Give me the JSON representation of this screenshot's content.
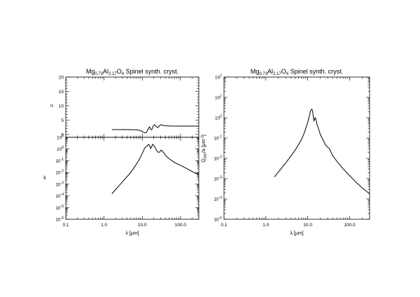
{
  "chart_data": [
    {
      "type": "line",
      "panel": "n",
      "title": "Mg0.73Al2.17O4 Spinel synth. cryst.",
      "title_parts": {
        "a": "Mg",
        "s1": "0.73",
        "b": "Al",
        "s2": "2.17",
        "c": "O",
        "s3": "4",
        "d": " Spinel synth. cryst."
      },
      "xlabel": "",
      "ylabel": "n",
      "xscale": "log",
      "xlim": [
        0.1,
        300
      ],
      "ylim": [
        -1,
        20
      ],
      "yticks": [
        "0",
        "5",
        "10",
        "15",
        "20"
      ],
      "x": [
        1.6,
        3.0,
        5.0,
        7.0,
        8.5,
        9.5,
        10.5,
        11.5,
        12.5,
        13.5,
        14.5,
        15.5,
        16.5,
        17.5,
        18.5,
        19.5,
        21,
        23,
        25,
        27,
        29,
        31,
        33,
        36,
        40,
        50,
        70,
        100,
        150,
        200,
        300
      ],
      "values": [
        1.7,
        1.69,
        1.66,
        1.58,
        1.42,
        1.2,
        0.85,
        0.55,
        0.6,
        1.2,
        2.1,
        2.6,
        1.8,
        1.6,
        2.2,
        3.1,
        3.4,
        2.8,
        2.4,
        2.7,
        3.2,
        3.4,
        3.3,
        3.1,
        3.0,
        2.95,
        2.92,
        2.9,
        2.9,
        2.9,
        2.9
      ]
    },
    {
      "type": "line",
      "panel": "k",
      "title": "",
      "xlabel": "λ [μm]",
      "ylabel": "k",
      "xscale": "log",
      "yscale": "log",
      "xlim": [
        0.1,
        300
      ],
      "ylim": [
        1e-06,
        10
      ],
      "xticks": [
        "0.1",
        "1.0",
        "10.0",
        "100.0"
      ],
      "yticks": [
        "10-6",
        "10-5",
        "10-4",
        "10-3",
        "10-2",
        "10-1",
        "100",
        "101"
      ],
      "x": [
        1.6,
        3.0,
        5.0,
        7.0,
        9.0,
        10.5,
        11.5,
        12.5,
        13.5,
        14.5,
        15.5,
        16.5,
        17.5,
        18.5,
        19.5,
        21,
        23,
        25,
        27,
        29,
        31,
        33,
        36,
        40,
        50,
        70,
        100,
        150,
        200,
        300
      ],
      "values": [
        0.00015,
        0.0015,
        0.01,
        0.05,
        0.2,
        0.6,
        1.2,
        1.5,
        1.8,
        2.5,
        2.0,
        1.1,
        1.5,
        2.5,
        2.2,
        1.6,
        0.9,
        0.6,
        0.5,
        0.6,
        0.8,
        0.7,
        0.5,
        0.3,
        0.15,
        0.07,
        0.04,
        0.02,
        0.012,
        0.006
      ]
    },
    {
      "type": "line",
      "panel": "Qabs",
      "title": "Mg0.73Al2.17O4 Spinel synth. cryst.",
      "title_parts": {
        "a": "Mg",
        "s1": "0.73",
        "b": "Al",
        "s2": "2.17",
        "c": "O",
        "s3": "4",
        "d": " Spinel synth. cryst."
      },
      "xlabel": "λ [μm]",
      "ylabel": "Qabs/a [μm-1]",
      "ylabel_parts": {
        "a": "Q",
        "sub": "abs",
        "b": "/a [μm",
        "sup": "-1",
        "c": "]"
      },
      "xscale": "log",
      "yscale": "log",
      "xlim": [
        0.1,
        300
      ],
      "ylim": [
        1e-05,
        100
      ],
      "xticks": [
        "0.1",
        "1.0",
        "10.0",
        "100.0"
      ],
      "yticks": [
        "10-5",
        "10-4",
        "10-3",
        "10-2",
        "10-1",
        "100",
        "101",
        "102"
      ],
      "x": [
        1.6,
        3.0,
        5.0,
        7.0,
        8.0,
        9.0,
        10.0,
        11.0,
        11.5,
        12.0,
        12.5,
        13.0,
        13.5,
        14.0,
        14.5,
        15.0,
        15.5,
        16.0,
        16.5,
        17.0,
        18,
        19,
        20,
        22,
        24,
        26,
        28,
        30,
        33,
        36,
        40,
        50,
        70,
        100,
        150,
        200,
        300
      ],
      "values": [
        0.0012,
        0.006,
        0.025,
        0.08,
        0.15,
        0.3,
        0.6,
        1.3,
        2.0,
        2.4,
        2.6,
        2.2,
        1.2,
        0.7,
        0.8,
        1.0,
        0.9,
        0.7,
        0.5,
        0.4,
        0.3,
        0.2,
        0.15,
        0.1,
        0.07,
        0.05,
        0.04,
        0.035,
        0.03,
        0.02,
        0.013,
        0.007,
        0.003,
        0.0014,
        0.0006,
        0.00035,
        0.00018
      ]
    }
  ]
}
